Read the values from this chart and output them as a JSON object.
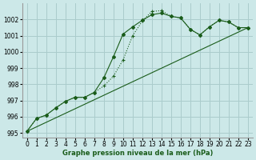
{
  "xlabel": "Graphe pression niveau de la mer (hPa)",
  "bg_color": "#cce8e8",
  "grid_color": "#aacccc",
  "line_color": "#1a5c1a",
  "xlim": [
    -0.5,
    23.5
  ],
  "ylim": [
    994.7,
    1003.0
  ],
  "yticks": [
    995,
    996,
    997,
    998,
    999,
    1000,
    1001,
    1002
  ],
  "xticks": [
    0,
    1,
    2,
    3,
    4,
    5,
    6,
    7,
    8,
    9,
    10,
    11,
    12,
    13,
    14,
    15,
    16,
    17,
    18,
    19,
    20,
    21,
    22,
    23
  ],
  "series1_x": [
    0,
    1,
    2,
    3,
    4,
    5,
    6,
    7,
    8,
    9,
    10,
    11,
    12,
    13,
    14,
    15,
    16,
    17,
    18,
    19,
    20,
    21,
    22,
    23
  ],
  "series1_y": [
    995.1,
    995.9,
    996.1,
    996.55,
    996.95,
    997.2,
    997.2,
    997.5,
    997.9,
    998.5,
    999.5,
    1001.0,
    1001.9,
    1002.5,
    1002.55,
    1002.2,
    1002.1,
    1001.4,
    1001.05,
    1001.55,
    1001.95,
    1001.85,
    1001.5,
    1001.5
  ],
  "series2_x": [
    0,
    1,
    2,
    3,
    4,
    5,
    6,
    7,
    8,
    9,
    10,
    11,
    12,
    13,
    14,
    15,
    16,
    17,
    18,
    19,
    20,
    21,
    22,
    23
  ],
  "series2_y": [
    995.1,
    995.9,
    996.1,
    996.55,
    996.95,
    997.2,
    997.2,
    997.5,
    998.4,
    999.7,
    1001.1,
    1001.55,
    1001.95,
    1002.3,
    1002.4,
    1002.2,
    1002.1,
    1001.4,
    1001.05,
    1001.55,
    1001.95,
    1001.85,
    1001.5,
    1001.5
  ],
  "series3_x": [
    0,
    23
  ],
  "series3_y": [
    995.1,
    1001.5
  ]
}
